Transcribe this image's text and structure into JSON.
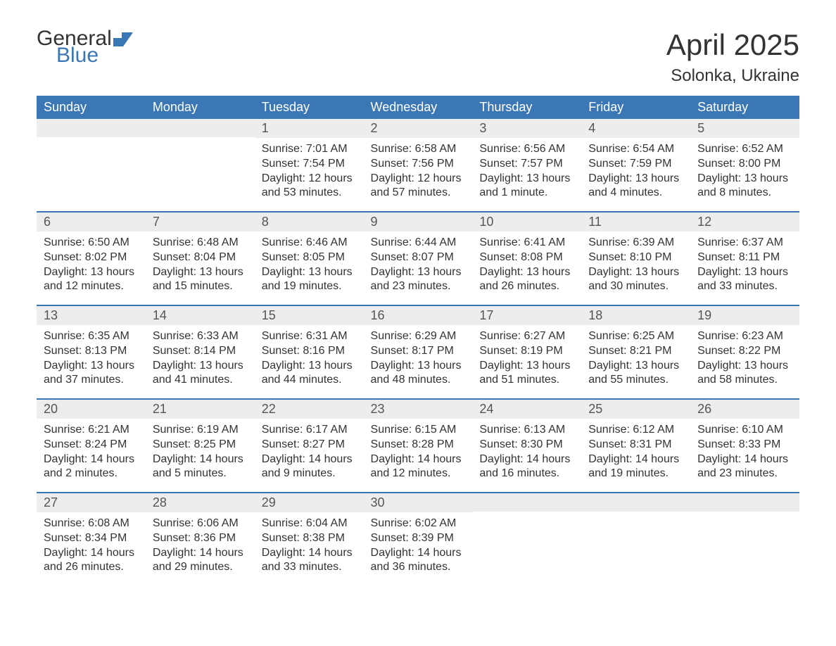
{
  "logo": {
    "general": "General",
    "blue": "Blue",
    "flag_color": "#3b77b5"
  },
  "header": {
    "month": "April 2025",
    "location": "Solonka, Ukraine"
  },
  "colors": {
    "header_bg": "#3b77b5",
    "header_text": "#ffffff",
    "daynum_bg": "#ecedec",
    "text": "#333333",
    "row_divider": "#3b77b5"
  },
  "weekdays": [
    "Sunday",
    "Monday",
    "Tuesday",
    "Wednesday",
    "Thursday",
    "Friday",
    "Saturday"
  ],
  "weeks": [
    [
      {
        "daynum": "",
        "lines": []
      },
      {
        "daynum": "",
        "lines": []
      },
      {
        "daynum": "1",
        "lines": [
          "Sunrise: 7:01 AM",
          "Sunset: 7:54 PM",
          "Daylight: 12 hours and 53 minutes."
        ]
      },
      {
        "daynum": "2",
        "lines": [
          "Sunrise: 6:58 AM",
          "Sunset: 7:56 PM",
          "Daylight: 12 hours and 57 minutes."
        ]
      },
      {
        "daynum": "3",
        "lines": [
          "Sunrise: 6:56 AM",
          "Sunset: 7:57 PM",
          "Daylight: 13 hours and 1 minute."
        ]
      },
      {
        "daynum": "4",
        "lines": [
          "Sunrise: 6:54 AM",
          "Sunset: 7:59 PM",
          "Daylight: 13 hours and 4 minutes."
        ]
      },
      {
        "daynum": "5",
        "lines": [
          "Sunrise: 6:52 AM",
          "Sunset: 8:00 PM",
          "Daylight: 13 hours and 8 minutes."
        ]
      }
    ],
    [
      {
        "daynum": "6",
        "lines": [
          "Sunrise: 6:50 AM",
          "Sunset: 8:02 PM",
          "Daylight: 13 hours and 12 minutes."
        ]
      },
      {
        "daynum": "7",
        "lines": [
          "Sunrise: 6:48 AM",
          "Sunset: 8:04 PM",
          "Daylight: 13 hours and 15 minutes."
        ]
      },
      {
        "daynum": "8",
        "lines": [
          "Sunrise: 6:46 AM",
          "Sunset: 8:05 PM",
          "Daylight: 13 hours and 19 minutes."
        ]
      },
      {
        "daynum": "9",
        "lines": [
          "Sunrise: 6:44 AM",
          "Sunset: 8:07 PM",
          "Daylight: 13 hours and 23 minutes."
        ]
      },
      {
        "daynum": "10",
        "lines": [
          "Sunrise: 6:41 AM",
          "Sunset: 8:08 PM",
          "Daylight: 13 hours and 26 minutes."
        ]
      },
      {
        "daynum": "11",
        "lines": [
          "Sunrise: 6:39 AM",
          "Sunset: 8:10 PM",
          "Daylight: 13 hours and 30 minutes."
        ]
      },
      {
        "daynum": "12",
        "lines": [
          "Sunrise: 6:37 AM",
          "Sunset: 8:11 PM",
          "Daylight: 13 hours and 33 minutes."
        ]
      }
    ],
    [
      {
        "daynum": "13",
        "lines": [
          "Sunrise: 6:35 AM",
          "Sunset: 8:13 PM",
          "Daylight: 13 hours and 37 minutes."
        ]
      },
      {
        "daynum": "14",
        "lines": [
          "Sunrise: 6:33 AM",
          "Sunset: 8:14 PM",
          "Daylight: 13 hours and 41 minutes."
        ]
      },
      {
        "daynum": "15",
        "lines": [
          "Sunrise: 6:31 AM",
          "Sunset: 8:16 PM",
          "Daylight: 13 hours and 44 minutes."
        ]
      },
      {
        "daynum": "16",
        "lines": [
          "Sunrise: 6:29 AM",
          "Sunset: 8:17 PM",
          "Daylight: 13 hours and 48 minutes."
        ]
      },
      {
        "daynum": "17",
        "lines": [
          "Sunrise: 6:27 AM",
          "Sunset: 8:19 PM",
          "Daylight: 13 hours and 51 minutes."
        ]
      },
      {
        "daynum": "18",
        "lines": [
          "Sunrise: 6:25 AM",
          "Sunset: 8:21 PM",
          "Daylight: 13 hours and 55 minutes."
        ]
      },
      {
        "daynum": "19",
        "lines": [
          "Sunrise: 6:23 AM",
          "Sunset: 8:22 PM",
          "Daylight: 13 hours and 58 minutes."
        ]
      }
    ],
    [
      {
        "daynum": "20",
        "lines": [
          "Sunrise: 6:21 AM",
          "Sunset: 8:24 PM",
          "Daylight: 14 hours and 2 minutes."
        ]
      },
      {
        "daynum": "21",
        "lines": [
          "Sunrise: 6:19 AM",
          "Sunset: 8:25 PM",
          "Daylight: 14 hours and 5 minutes."
        ]
      },
      {
        "daynum": "22",
        "lines": [
          "Sunrise: 6:17 AM",
          "Sunset: 8:27 PM",
          "Daylight: 14 hours and 9 minutes."
        ]
      },
      {
        "daynum": "23",
        "lines": [
          "Sunrise: 6:15 AM",
          "Sunset: 8:28 PM",
          "Daylight: 14 hours and 12 minutes."
        ]
      },
      {
        "daynum": "24",
        "lines": [
          "Sunrise: 6:13 AM",
          "Sunset: 8:30 PM",
          "Daylight: 14 hours and 16 minutes."
        ]
      },
      {
        "daynum": "25",
        "lines": [
          "Sunrise: 6:12 AM",
          "Sunset: 8:31 PM",
          "Daylight: 14 hours and 19 minutes."
        ]
      },
      {
        "daynum": "26",
        "lines": [
          "Sunrise: 6:10 AM",
          "Sunset: 8:33 PM",
          "Daylight: 14 hours and 23 minutes."
        ]
      }
    ],
    [
      {
        "daynum": "27",
        "lines": [
          "Sunrise: 6:08 AM",
          "Sunset: 8:34 PM",
          "Daylight: 14 hours and 26 minutes."
        ]
      },
      {
        "daynum": "28",
        "lines": [
          "Sunrise: 6:06 AM",
          "Sunset: 8:36 PM",
          "Daylight: 14 hours and 29 minutes."
        ]
      },
      {
        "daynum": "29",
        "lines": [
          "Sunrise: 6:04 AM",
          "Sunset: 8:38 PM",
          "Daylight: 14 hours and 33 minutes."
        ]
      },
      {
        "daynum": "30",
        "lines": [
          "Sunrise: 6:02 AM",
          "Sunset: 8:39 PM",
          "Daylight: 14 hours and 36 minutes."
        ]
      },
      {
        "daynum": "",
        "lines": []
      },
      {
        "daynum": "",
        "lines": []
      },
      {
        "daynum": "",
        "lines": []
      }
    ]
  ]
}
